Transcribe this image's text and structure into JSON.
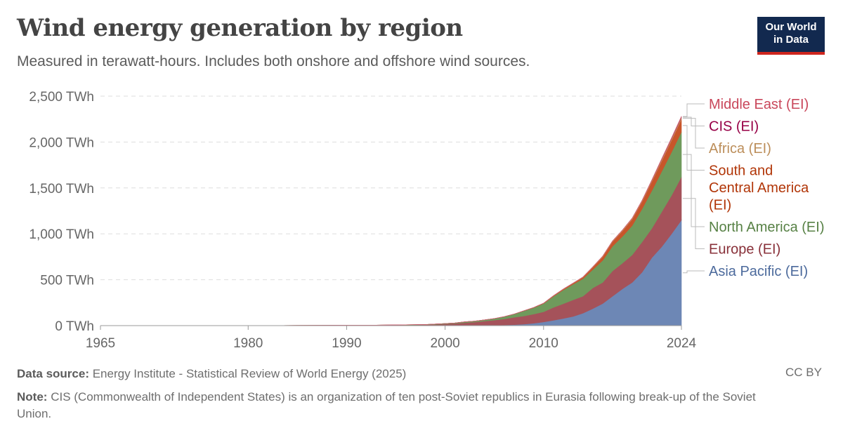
{
  "header": {
    "title": "Wind energy generation by region",
    "subtitle": "Measured in terawatt-hours. Includes both onshore and offshore wind sources.",
    "logo_line1": "Our World",
    "logo_line2": "in Data"
  },
  "footer": {
    "source_label": "Data source:",
    "source_text": "Energy Institute - Statistical Review of World Energy (2025)",
    "note_label": "Note:",
    "note_text": "CIS (Commonwealth of Independent States) is an organization of ten post-Soviet republics in Eurasia following break-up of the Soviet Union.",
    "license": "CC BY"
  },
  "chart_data": {
    "type": "area",
    "stacked": true,
    "x": [
      1965,
      1970,
      1975,
      1980,
      1985,
      1988,
      1990,
      1993,
      1996,
      1998,
      2000,
      2001,
      2002,
      2003,
      2004,
      2005,
      2006,
      2007,
      2008,
      2009,
      2010,
      2011,
      2012,
      2013,
      2014,
      2015,
      2016,
      2017,
      2018,
      2019,
      2020,
      2021,
      2022,
      2023,
      2024
    ],
    "x_ticks": [
      "1965",
      "1980",
      "1990",
      "2000",
      "2010",
      "2024"
    ],
    "x_tick_values": [
      1965,
      1980,
      1990,
      2000,
      2010,
      2024
    ],
    "y_ticks": [
      "0 TWh",
      "500 TWh",
      "1,000 TWh",
      "1,500 TWh",
      "2,000 TWh",
      "2,500 TWh"
    ],
    "y_tick_values": [
      0,
      500,
      1000,
      1500,
      2000,
      2500
    ],
    "xlim": [
      1965,
      2024
    ],
    "ylim": [
      0,
      2500
    ],
    "grid": true,
    "legend_placement": "right",
    "series": [
      {
        "name": "Asia Pacific (EI)",
        "label_lines": [
          "Asia Pacific (EI)"
        ],
        "color": "#4c6a9c",
        "fill": "#6d87b5",
        "values": [
          0,
          0,
          0,
          0,
          0,
          0,
          0,
          0,
          1,
          1,
          2,
          2,
          3,
          3,
          4,
          5,
          7,
          10,
          15,
          25,
          40,
          58,
          78,
          100,
          135,
          185,
          240,
          320,
          400,
          470,
          580,
          740,
          860,
          1000,
          1150
        ]
      },
      {
        "name": "Europe (EI)",
        "label_lines": [
          "Europe (EI)"
        ],
        "color": "#883039",
        "fill": "#a5525a",
        "values": [
          0,
          0,
          0,
          0,
          0,
          1,
          1,
          2,
          5,
          8,
          15,
          20,
          28,
          35,
          45,
          55,
          65,
          80,
          90,
          100,
          110,
          140,
          160,
          180,
          185,
          225,
          230,
          275,
          280,
          300,
          330,
          320,
          380,
          420,
          470
        ]
      },
      {
        "name": "North America (EI)",
        "label_lines": [
          "North America (EI)"
        ],
        "color": "#578145",
        "fill": "#6f9a5c",
        "values": [
          0,
          0,
          0,
          0,
          2,
          3,
          4,
          3,
          3,
          3,
          6,
          7,
          10,
          11,
          14,
          17,
          26,
          35,
          55,
          70,
          90,
          120,
          150,
          170,
          190,
          200,
          240,
          270,
          290,
          320,
          360,
          410,
          440,
          470,
          490
        ]
      },
      {
        "name": "South and Central America (EI)",
        "label_lines": [
          "South and",
          "Central America",
          "(EI)"
        ],
        "color": "#b13507",
        "fill": "#c8552a",
        "values": [
          0,
          0,
          0,
          0,
          0,
          0,
          0,
          0,
          0,
          0,
          0,
          0,
          0,
          0,
          0,
          0,
          0,
          0,
          1,
          2,
          3,
          5,
          7,
          10,
          15,
          25,
          40,
          50,
          60,
          70,
          80,
          100,
          115,
          130,
          140
        ]
      },
      {
        "name": "Africa (EI)",
        "label_lines": [
          "Africa (EI)"
        ],
        "color": "#bc8e5a",
        "fill": "#c99a66",
        "values": [
          0,
          0,
          0,
          0,
          0,
          0,
          0,
          0,
          0,
          0,
          0,
          0,
          0,
          0,
          0,
          0,
          0,
          1,
          1,
          1,
          2,
          3,
          3,
          3,
          4,
          5,
          6,
          7,
          8,
          9,
          10,
          12,
          15,
          16,
          17
        ]
      },
      {
        "name": "CIS (EI)",
        "label_lines": [
          "CIS (EI)"
        ],
        "color": "#970046",
        "fill": "#a2285f",
        "values": [
          0,
          0,
          0,
          0,
          0,
          0,
          0,
          0,
          0,
          0,
          0,
          0,
          0,
          0,
          0,
          0,
          0,
          0,
          0,
          0,
          0,
          0,
          0,
          0,
          0,
          0,
          0,
          0,
          1,
          1,
          2,
          4,
          6,
          7,
          8
        ]
      },
      {
        "name": "Middle East (EI)",
        "label_lines": [
          "Middle East (EI)"
        ],
        "color": "#c9475b",
        "fill": "#d46677",
        "values": [
          0,
          0,
          0,
          0,
          0,
          0,
          0,
          0,
          0,
          0,
          0,
          0,
          0,
          0,
          0,
          0,
          0,
          0,
          0,
          0,
          0,
          0,
          0,
          0,
          1,
          1,
          1,
          1,
          2,
          2,
          3,
          3,
          4,
          5,
          6
        ]
      }
    ]
  }
}
